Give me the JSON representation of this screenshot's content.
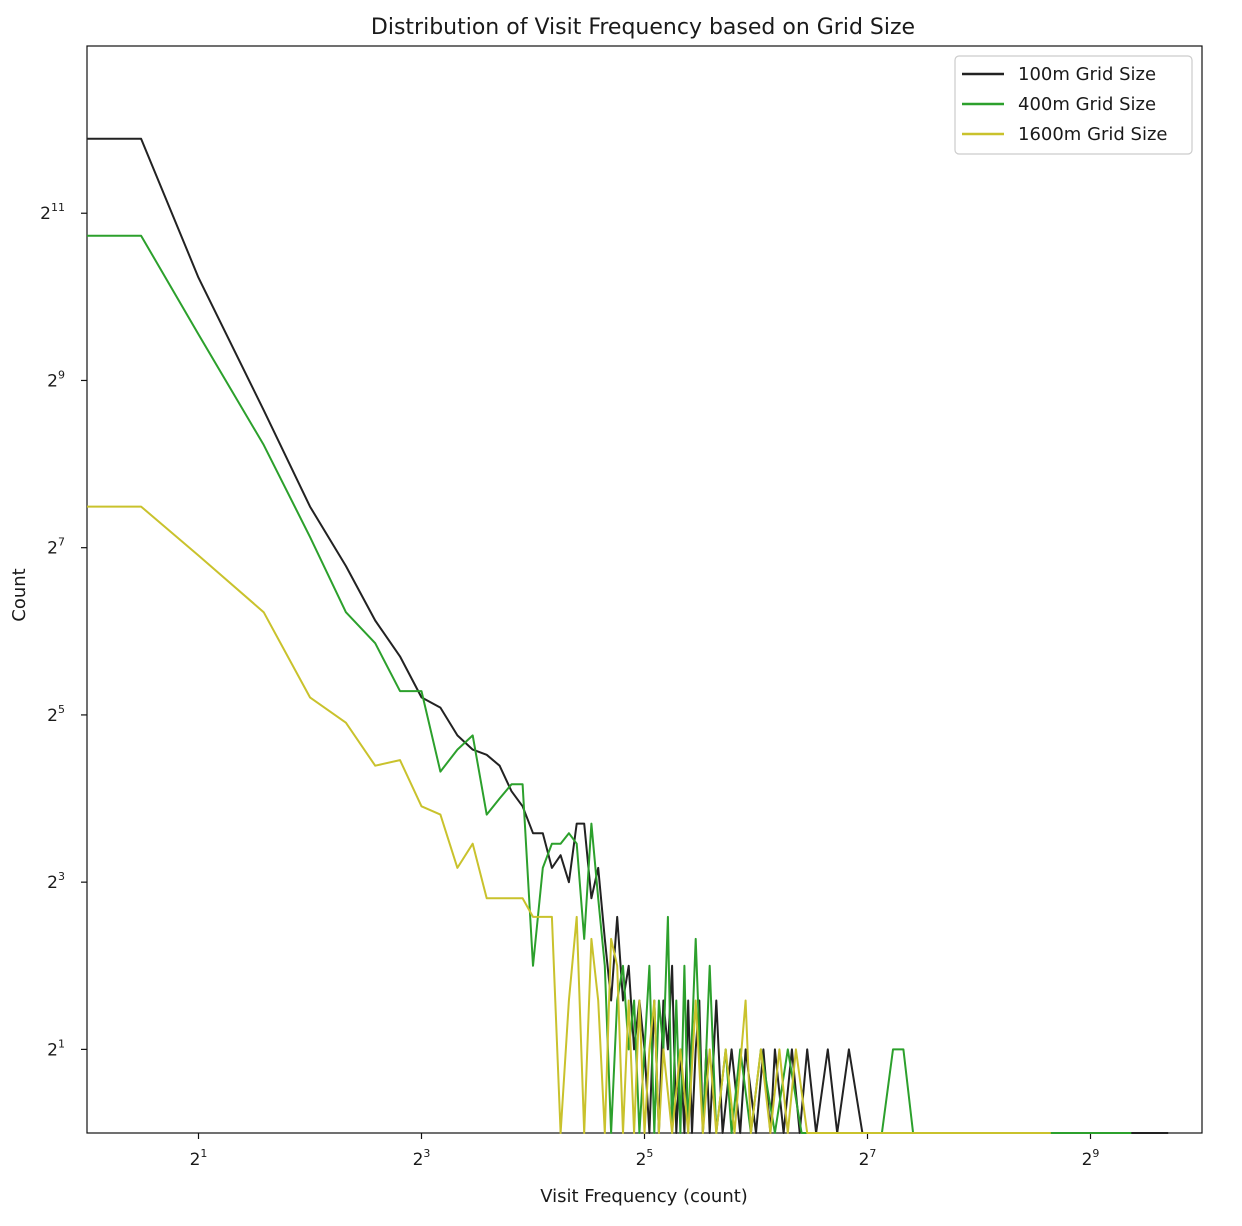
{
  "chart_data": {
    "type": "line",
    "title": "Distribution of Visit Frequency based on Grid Size",
    "xlabel": "Visit Frequency (count)",
    "ylabel": "Count",
    "xscale": "log2",
    "yscale": "log2",
    "xlim": [
      1,
      1024
    ],
    "ylim": [
      1,
      8192
    ],
    "x_ticks": [
      2,
      8,
      32,
      128,
      512
    ],
    "y_ticks": [
      2,
      8,
      32,
      128,
      512,
      2048
    ],
    "grid": false,
    "legend_position": "top-right",
    "series": [
      {
        "name": "100m Grid Size",
        "color": "#222222",
        "points": [
          [
            1,
            3800
          ],
          [
            1.4,
            3800
          ],
          [
            2,
            1200
          ],
          [
            3,
            400
          ],
          [
            4,
            180
          ],
          [
            5,
            110
          ],
          [
            6,
            70
          ],
          [
            7,
            52
          ],
          [
            8,
            37
          ],
          [
            9,
            34
          ],
          [
            10,
            27
          ],
          [
            11,
            24
          ],
          [
            12,
            23
          ],
          [
            13,
            21
          ],
          [
            14,
            17
          ],
          [
            15,
            15
          ],
          [
            16,
            12
          ],
          [
            17,
            12
          ],
          [
            18,
            9
          ],
          [
            19,
            10
          ],
          [
            20,
            8
          ],
          [
            21,
            13
          ],
          [
            22,
            13
          ],
          [
            23,
            7
          ],
          [
            24,
            9
          ],
          [
            25,
            5
          ],
          [
            26,
            3
          ],
          [
            27,
            6
          ],
          [
            28,
            3
          ],
          [
            29,
            4
          ],
          [
            30,
            2
          ],
          [
            31,
            3
          ],
          [
            32,
            2
          ],
          [
            33,
            1
          ],
          [
            34,
            3
          ],
          [
            35,
            1
          ],
          [
            36,
            3
          ],
          [
            37,
            2
          ],
          [
            38,
            4
          ],
          [
            39,
            1
          ],
          [
            40,
            2
          ],
          [
            41,
            1
          ],
          [
            42,
            3
          ],
          [
            43,
            1
          ],
          [
            44,
            2
          ],
          [
            45,
            3
          ],
          [
            46,
            1
          ],
          [
            47,
            2
          ],
          [
            48,
            1
          ],
          [
            50,
            3
          ],
          [
            52,
            1
          ],
          [
            55,
            2
          ],
          [
            58,
            1
          ],
          [
            60,
            2
          ],
          [
            64,
            1
          ],
          [
            67,
            2
          ],
          [
            70,
            1
          ],
          [
            72,
            2
          ],
          [
            76,
            1
          ],
          [
            80,
            2
          ],
          [
            84,
            1
          ],
          [
            88,
            2
          ],
          [
            93,
            1
          ],
          [
            100,
            2
          ],
          [
            106,
            1
          ],
          [
            114,
            2
          ],
          [
            124,
            1
          ],
          [
            200,
            1
          ],
          [
            400,
            1
          ],
          [
            830,
            1
          ]
        ]
      },
      {
        "name": "400m Grid Size",
        "color": "#2ca02c",
        "points": [
          [
            1,
            1700
          ],
          [
            1.4,
            1700
          ],
          [
            2,
            750
          ],
          [
            3,
            300
          ],
          [
            4,
            140
          ],
          [
            5,
            75
          ],
          [
            6,
            58
          ],
          [
            7,
            39
          ],
          [
            8,
            39
          ],
          [
            9,
            20
          ],
          [
            10,
            24
          ],
          [
            11,
            27
          ],
          [
            12,
            14
          ],
          [
            13,
            16
          ],
          [
            14,
            18
          ],
          [
            15,
            18
          ],
          [
            16,
            4
          ],
          [
            17,
            9
          ],
          [
            18,
            11
          ],
          [
            19,
            11
          ],
          [
            20,
            12
          ],
          [
            21,
            11
          ],
          [
            22,
            5
          ],
          [
            23,
            13
          ],
          [
            24,
            7
          ],
          [
            25,
            4
          ],
          [
            26,
            1
          ],
          [
            27,
            3
          ],
          [
            28,
            4
          ],
          [
            29,
            2
          ],
          [
            30,
            3
          ],
          [
            31,
            1
          ],
          [
            32,
            2
          ],
          [
            33,
            4
          ],
          [
            34,
            1
          ],
          [
            35,
            3
          ],
          [
            36,
            2
          ],
          [
            37,
            6
          ],
          [
            38,
            1
          ],
          [
            39,
            3
          ],
          [
            40,
            1
          ],
          [
            41,
            4
          ],
          [
            42,
            1
          ],
          [
            44,
            5
          ],
          [
            46,
            1
          ],
          [
            48,
            4
          ],
          [
            50,
            1
          ],
          [
            53,
            2
          ],
          [
            55,
            1
          ],
          [
            58,
            2
          ],
          [
            62,
            1
          ],
          [
            66,
            2
          ],
          [
            72,
            1
          ],
          [
            78,
            2
          ],
          [
            85,
            1
          ],
          [
            140,
            1
          ],
          [
            150,
            2
          ],
          [
            160,
            2
          ],
          [
            170,
            1
          ],
          [
            300,
            1
          ],
          [
            660,
            1
          ]
        ]
      },
      {
        "name": "1600m Grid Size",
        "color": "#c9c22c",
        "points": [
          [
            1,
            180
          ],
          [
            1.4,
            180
          ],
          [
            2,
            120
          ],
          [
            3,
            75
          ],
          [
            4,
            37
          ],
          [
            5,
            30
          ],
          [
            6,
            21
          ],
          [
            7,
            22
          ],
          [
            8,
            15
          ],
          [
            9,
            14
          ],
          [
            10,
            9
          ],
          [
            11,
            11
          ],
          [
            12,
            7
          ],
          [
            13,
            7
          ],
          [
            14,
            7
          ],
          [
            15,
            7
          ],
          [
            16,
            6
          ],
          [
            17,
            6
          ],
          [
            18,
            6
          ],
          [
            19,
            1
          ],
          [
            20,
            3
          ],
          [
            21,
            6
          ],
          [
            22,
            1
          ],
          [
            23,
            5
          ],
          [
            24,
            3
          ],
          [
            25,
            1
          ],
          [
            26,
            5
          ],
          [
            27,
            4
          ],
          [
            28,
            1
          ],
          [
            29,
            3
          ],
          [
            30,
            1
          ],
          [
            31,
            3
          ],
          [
            32,
            1
          ],
          [
            33,
            2
          ],
          [
            34,
            3
          ],
          [
            35,
            1
          ],
          [
            36,
            2
          ],
          [
            38,
            1
          ],
          [
            40,
            2
          ],
          [
            42,
            1
          ],
          [
            44,
            3
          ],
          [
            46,
            1
          ],
          [
            48,
            2
          ],
          [
            50,
            1
          ],
          [
            53,
            2
          ],
          [
            56,
            1
          ],
          [
            60,
            3
          ],
          [
            62,
            1
          ],
          [
            66,
            2
          ],
          [
            70,
            1
          ],
          [
            74,
            2
          ],
          [
            78,
            1
          ],
          [
            82,
            2
          ],
          [
            88,
            1
          ],
          [
            140,
            1
          ],
          [
            260,
            1
          ],
          [
            400,
            1
          ]
        ]
      }
    ]
  }
}
